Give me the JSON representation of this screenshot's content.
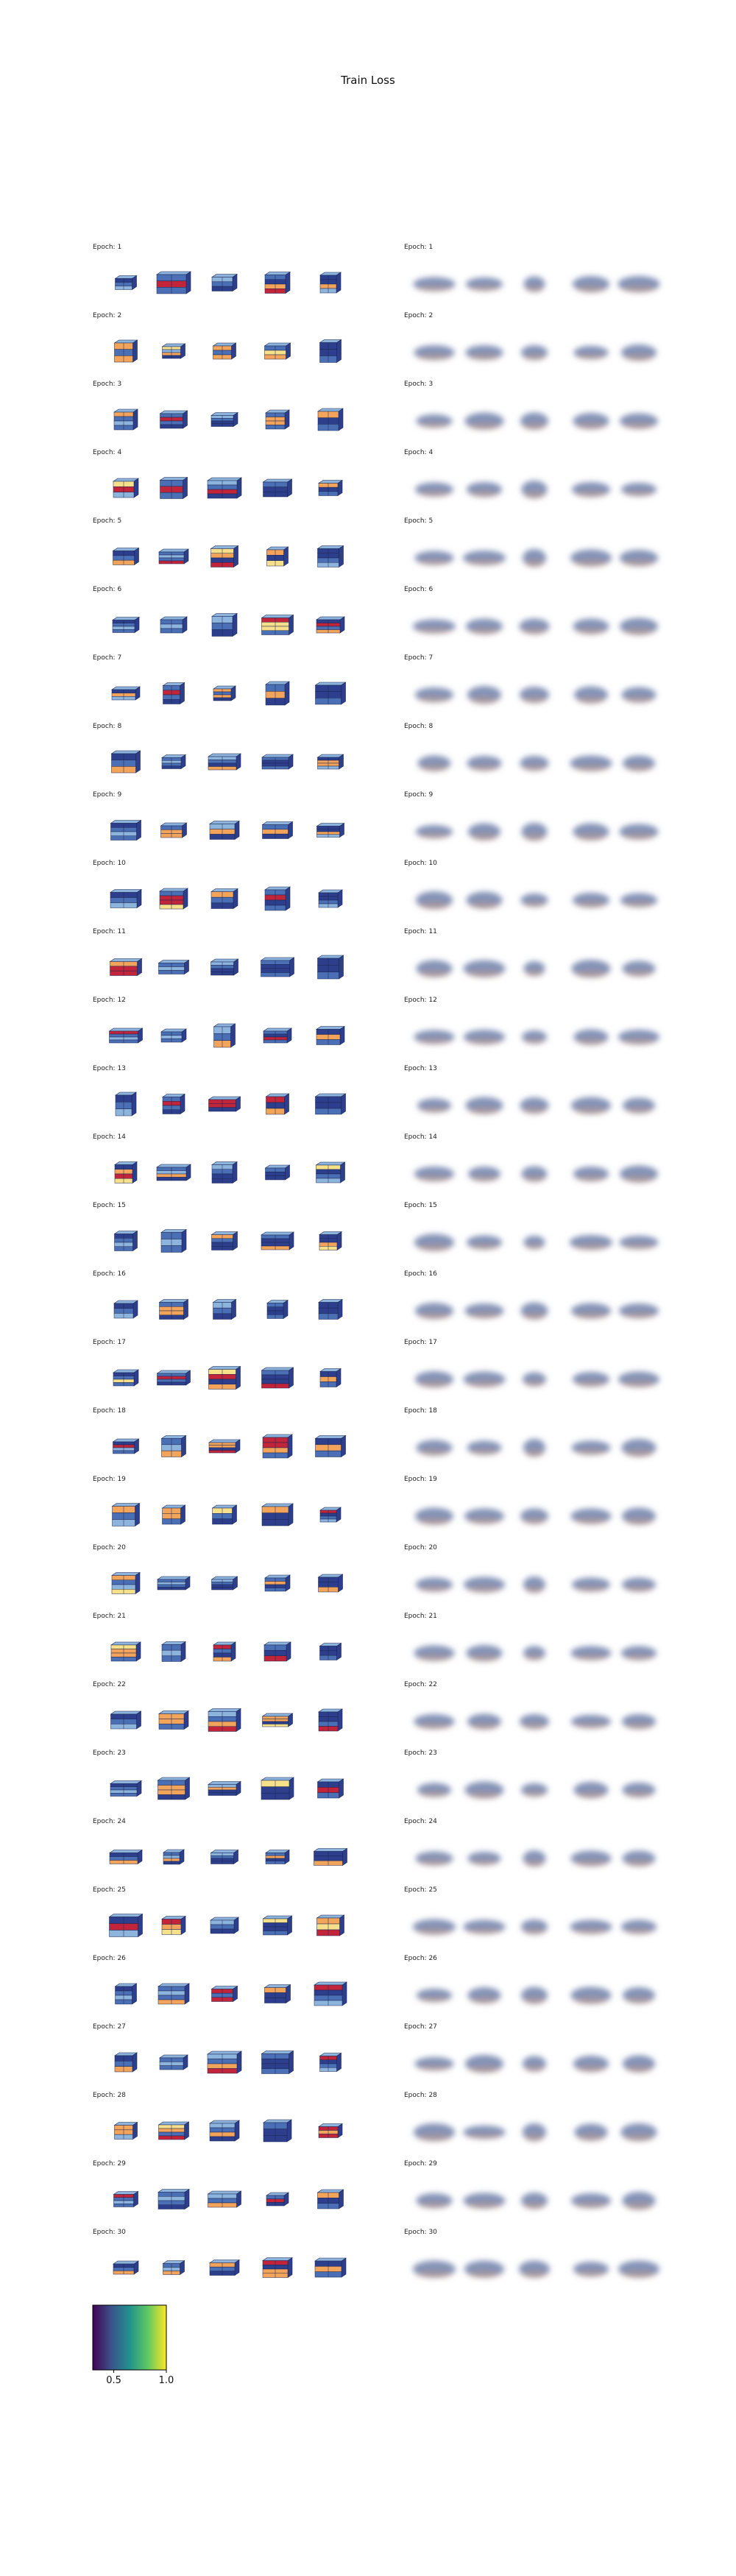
{
  "chart_data": {
    "type": "other",
    "title": "Train Loss",
    "panel_labels": [
      "Epoch: 1",
      "Epoch: 2",
      "Epoch: 3",
      "Epoch: 4",
      "Epoch: 5",
      "Epoch: 6",
      "Epoch: 7",
      "Epoch: 8",
      "Epoch: 9",
      "Epoch: 10",
      "Epoch: 11",
      "Epoch: 12",
      "Epoch: 13",
      "Epoch: 14",
      "Epoch: 15",
      "Epoch: 16",
      "Epoch: 17",
      "Epoch: 18",
      "Epoch: 19",
      "Epoch: 20",
      "Epoch: 21",
      "Epoch: 22",
      "Epoch: 23",
      "Epoch: 24",
      "Epoch: 25",
      "Epoch: 26",
      "Epoch: 27",
      "Epoch: 28",
      "Epoch: 29",
      "Epoch: 30"
    ],
    "epochs": [
      1,
      2,
      3,
      4,
      5,
      6,
      7,
      8,
      9,
      10,
      11,
      12,
      13,
      14,
      15,
      16,
      17,
      18,
      19,
      20,
      21,
      22,
      23,
      24,
      25,
      26,
      27,
      28,
      29,
      30
    ],
    "objects_per_panel": 5,
    "colorbar": {
      "colormap": "viridis",
      "range": [
        0.3,
        1.0
      ],
      "ticks": [
        0.5,
        1.0
      ],
      "tick_labels": [
        "0.5",
        "1.0"
      ]
    },
    "colors": {
      "viridis": [
        "#440154",
        "#3b528b",
        "#21918c",
        "#5ec962",
        "#fde725"
      ],
      "block_dark": "#2d3f8c",
      "block_mid": "#4a6fb5",
      "block_light": "#8cb4dc",
      "accent_orange": "#f2a45a",
      "accent_red": "#c2253a",
      "accent_yellow": "#f7e08a",
      "blur_blue": "#5b6f9e",
      "blur_orange": "#d4956a"
    }
  }
}
